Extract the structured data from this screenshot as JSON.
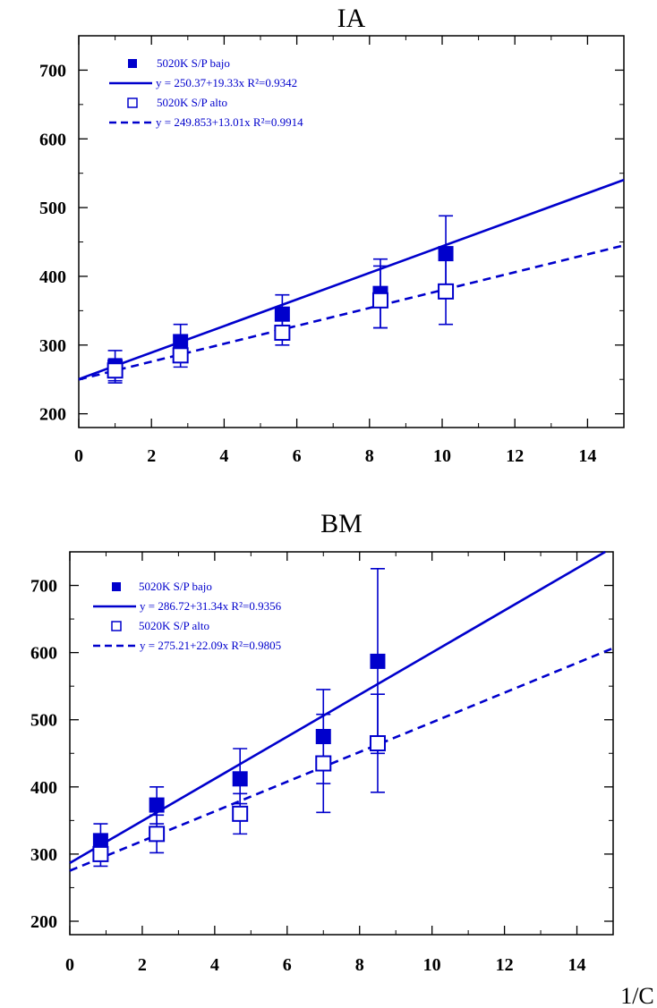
{
  "chart_data": [
    {
      "type": "scatter",
      "title": "IA",
      "xlabel": "",
      "ylabel": "",
      "xlim": [
        0,
        15
      ],
      "ylim": [
        180,
        750
      ],
      "xticks": [
        0,
        2,
        4,
        6,
        8,
        10,
        12,
        14
      ],
      "yticks": [
        200,
        300,
        400,
        500,
        600,
        700
      ],
      "grid": false,
      "legend_position": "top-left",
      "series": [
        {
          "name": "5020K S/P bajo",
          "marker": "filled-square",
          "color": "#0000cc",
          "points": [
            {
              "x": 1.0,
              "y": 268,
              "err_low": 245,
              "err_high": 292
            },
            {
              "x": 2.8,
              "y": 305,
              "err_low": 278,
              "err_high": 330
            },
            {
              "x": 5.6,
              "y": 345,
              "err_low": 318,
              "err_high": 373
            },
            {
              "x": 8.3,
              "y": 375,
              "err_low": 325,
              "err_high": 425
            },
            {
              "x": 10.1,
              "y": 433,
              "err_low": 380,
              "err_high": 488
            }
          ],
          "fit": {
            "label": "y = 250.37+19.33x   R²=0.9342",
            "intercept": 250.37,
            "slope": 19.33,
            "style": "solid"
          }
        },
        {
          "name": "5020K S/P alto",
          "marker": "open-square",
          "color": "#0000cc",
          "points": [
            {
              "x": 1.0,
              "y": 263,
              "err_low": 248,
              "err_high": 280
            },
            {
              "x": 2.8,
              "y": 285,
              "err_low": 268,
              "err_high": 300
            },
            {
              "x": 5.6,
              "y": 318,
              "err_low": 300,
              "err_high": 337
            },
            {
              "x": 8.3,
              "y": 365,
              "err_low": 325,
              "err_high": 415
            },
            {
              "x": 10.1,
              "y": 378,
              "err_low": 330,
              "err_high": 425
            }
          ],
          "fit": {
            "label": "y = 249.853+13.01x   R²=0.9914",
            "intercept": 249.853,
            "slope": 13.01,
            "style": "dashed"
          }
        }
      ]
    },
    {
      "type": "scatter",
      "title": "BM",
      "xlabel": "1/C",
      "ylabel": "",
      "xlim": [
        0,
        15
      ],
      "ylim": [
        180,
        750
      ],
      "xticks": [
        0,
        2,
        4,
        6,
        8,
        10,
        12,
        14
      ],
      "yticks": [
        200,
        300,
        400,
        500,
        600,
        700
      ],
      "grid": false,
      "legend_position": "top-left",
      "series": [
        {
          "name": "5020K S/P bajo",
          "marker": "filled-square",
          "color": "#0000cc",
          "points": [
            {
              "x": 0.85,
              "y": 320,
              "err_low": 292,
              "err_high": 345
            },
            {
              "x": 2.4,
              "y": 373,
              "err_low": 345,
              "err_high": 400
            },
            {
              "x": 4.7,
              "y": 412,
              "err_low": 375,
              "err_high": 457
            },
            {
              "x": 7.0,
              "y": 475,
              "err_low": 405,
              "err_high": 545
            },
            {
              "x": 8.5,
              "y": 587,
              "err_low": 450,
              "err_high": 725
            }
          ],
          "fit": {
            "label": "y = 286.72+31.34x   R²=0.9356",
            "intercept": 286.72,
            "slope": 31.34,
            "style": "solid"
          }
        },
        {
          "name": "5020K S/P alto",
          "marker": "open-square",
          "color": "#0000cc",
          "points": [
            {
              "x": 0.85,
              "y": 300,
              "err_low": 282,
              "err_high": 318
            },
            {
              "x": 2.4,
              "y": 330,
              "err_low": 302,
              "err_high": 358
            },
            {
              "x": 4.7,
              "y": 360,
              "err_low": 330,
              "err_high": 390
            },
            {
              "x": 7.0,
              "y": 435,
              "err_low": 362,
              "err_high": 508
            },
            {
              "x": 8.5,
              "y": 465,
              "err_low": 392,
              "err_high": 538
            }
          ],
          "fit": {
            "label": "y = 275.21+22.09x   R²=0.9805",
            "intercept": 275.21,
            "slope": 22.09,
            "style": "dashed"
          }
        }
      ]
    }
  ]
}
